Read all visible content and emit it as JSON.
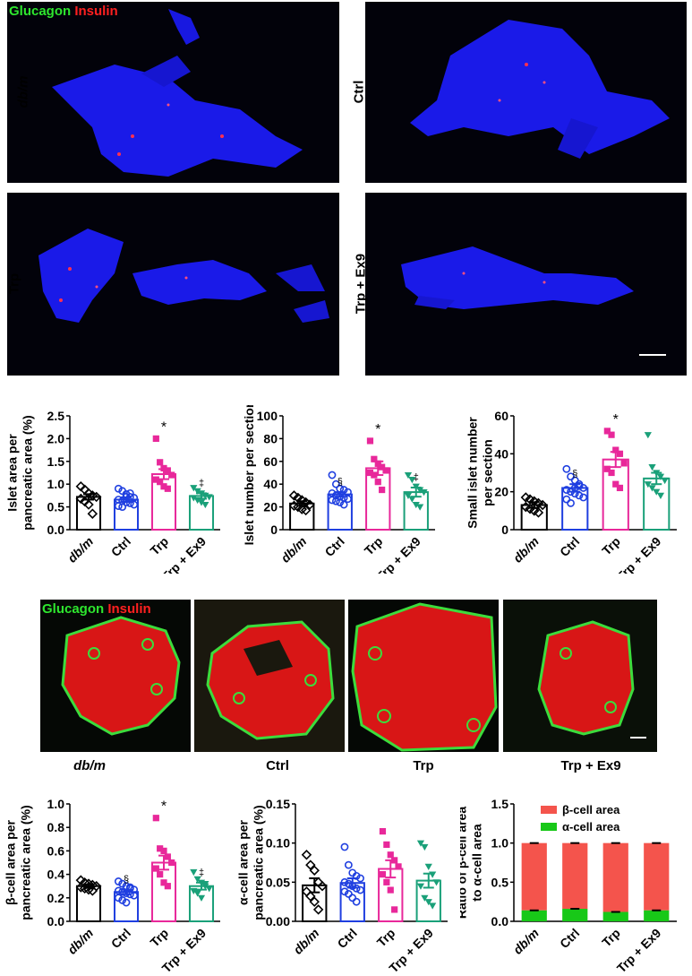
{
  "stain_legend": {
    "glucagon": "Glucagon",
    "insulin": "Insulin"
  },
  "section_panels": [
    {
      "label": "db/m"
    },
    {
      "label": "Ctrl"
    },
    {
      "label": "Trp"
    },
    {
      "label": "Trp + Ex9"
    }
  ],
  "islet_captions": [
    "db/m",
    "Ctrl",
    "Trp",
    "Trp + Ex9"
  ],
  "colors": {
    "db/m": "#000000",
    "Ctrl": "#1f3fe0",
    "Trp": "#e8289a",
    "Trp + Ex9": "#1aa079",
    "beta": "#f4544c",
    "alpha": "#18c818",
    "tissue_blue": "#1a1ae8",
    "insulin_red": "#e81818",
    "glucagon_green": "#3cdc3c"
  },
  "chart_data": [
    {
      "id": "islet-area",
      "type": "bar",
      "categories": [
        "db/m",
        "Ctrl",
        "Trp",
        "Trp + Ex9"
      ],
      "values": [
        0.72,
        0.66,
        1.22,
        0.74
      ],
      "errors": [
        0.06,
        0.05,
        0.11,
        0.06
      ],
      "points": [
        [
          0.95,
          0.88,
          0.8,
          0.75,
          0.72,
          0.68,
          0.62,
          0.55,
          0.35
        ],
        [
          0.9,
          0.85,
          0.78,
          0.72,
          0.7,
          0.66,
          0.63,
          0.6,
          0.58,
          0.55,
          0.52,
          0.5,
          0.72,
          0.8
        ],
        [
          2.0,
          1.48,
          1.35,
          1.3,
          1.2,
          1.1,
          1.05,
          0.95,
          0.9
        ],
        [
          0.92,
          0.85,
          0.8,
          0.75,
          0.72,
          0.7,
          0.65,
          0.6,
          0.55
        ]
      ],
      "markers": [
        "diamond-open",
        "circle-open",
        "square",
        "triangle-down"
      ],
      "ylabel": "Islet area per\npancreatic area (%)",
      "ylim": [
        0,
        2.5
      ],
      "yticks": [
        "0.0",
        "0.5",
        "1.0",
        "1.5",
        "2.0",
        "2.5"
      ],
      "annotations": [
        "",
        "",
        "*",
        "‡"
      ]
    },
    {
      "id": "islet-number",
      "type": "bar",
      "categories": [
        "db/m",
        "Ctrl",
        "Trp",
        "Trp + Ex9"
      ],
      "values": [
        23,
        31,
        54,
        33
      ],
      "errors": [
        2,
        2,
        6,
        4
      ],
      "points": [
        [
          30,
          28,
          26,
          24,
          22,
          21,
          20,
          18,
          17
        ],
        [
          48,
          40,
          36,
          35,
          33,
          32,
          30,
          29,
          28,
          27,
          26,
          25,
          24,
          22
        ],
        [
          78,
          62,
          58,
          55,
          52,
          50,
          48,
          42,
          35
        ],
        [
          48,
          44,
          38,
          35,
          33,
          30,
          27,
          22,
          20
        ]
      ],
      "markers": [
        "diamond-open",
        "circle-open",
        "square",
        "triangle-down"
      ],
      "ylabel": "Islet number per section",
      "ylim": [
        0,
        100
      ],
      "yticks": [
        "0",
        "20",
        "40",
        "60",
        "80",
        "100"
      ],
      "annotations": [
        "",
        "§",
        "*",
        "‡"
      ]
    },
    {
      "id": "small-islet-number",
      "type": "bar",
      "categories": [
        "db/m",
        "Ctrl",
        "Trp",
        "Trp + Ex9"
      ],
      "values": [
        13,
        22,
        37,
        27
      ],
      "errors": [
        1.5,
        2,
        4,
        3
      ],
      "points": [
        [
          17,
          16,
          15,
          14,
          13,
          12,
          11,
          10,
          9
        ],
        [
          32,
          28,
          26,
          24,
          22,
          21,
          20,
          19,
          18,
          17,
          16,
          14,
          22,
          23
        ],
        [
          52,
          50,
          42,
          40,
          35,
          32,
          30,
          24,
          22
        ],
        [
          50,
          33,
          30,
          28,
          26,
          24,
          22,
          20,
          18
        ]
      ],
      "markers": [
        "diamond-open",
        "circle-open",
        "square",
        "triangle-down"
      ],
      "ylabel": "Small islet number\nper section",
      "ylim": [
        0,
        60
      ],
      "yticks": [
        "0",
        "20",
        "40",
        "60"
      ],
      "annotations": [
        "",
        "§",
        "*",
        ""
      ]
    },
    {
      "id": "beta-cell-area",
      "type": "bar",
      "categories": [
        "db/m",
        "Ctrl",
        "Trp",
        "Trp + Ex9"
      ],
      "values": [
        0.3,
        0.25,
        0.5,
        0.3
      ],
      "errors": [
        0.015,
        0.02,
        0.06,
        0.03
      ],
      "points": [
        [
          0.35,
          0.33,
          0.32,
          0.31,
          0.3,
          0.29,
          0.28,
          0.27,
          0.26
        ],
        [
          0.34,
          0.32,
          0.3,
          0.28,
          0.27,
          0.26,
          0.25,
          0.24,
          0.23,
          0.22,
          0.2,
          0.18,
          0.16,
          0.29
        ],
        [
          0.88,
          0.62,
          0.6,
          0.55,
          0.5,
          0.45,
          0.4,
          0.33,
          0.3
        ],
        [
          0.42,
          0.36,
          0.33,
          0.3,
          0.28,
          0.26,
          0.24,
          0.2,
          0.32
        ]
      ],
      "markers": [
        "diamond-open",
        "circle-open",
        "square",
        "triangle-down"
      ],
      "ylabel": "β-cell area per\npancreatic area (%)",
      "ylim": [
        0,
        1.0
      ],
      "yticks": [
        "0.0",
        "0.2",
        "0.4",
        "0.6",
        "0.8",
        "1.0"
      ],
      "annotations": [
        "",
        "§",
        "*",
        "‡"
      ]
    },
    {
      "id": "alpha-cell-area",
      "type": "bar",
      "categories": [
        "db/m",
        "Ctrl",
        "Trp",
        "Trp + Ex9"
      ],
      "values": [
        0.046,
        0.049,
        0.067,
        0.052
      ],
      "errors": [
        0.009,
        0.006,
        0.011,
        0.009
      ],
      "points": [
        [
          0.085,
          0.072,
          0.065,
          0.05,
          0.045,
          0.038,
          0.032,
          0.025,
          0.015
        ],
        [
          0.095,
          0.072,
          0.062,
          0.058,
          0.055,
          0.05,
          0.048,
          0.045,
          0.042,
          0.04,
          0.038,
          0.035,
          0.03,
          0.025
        ],
        [
          0.115,
          0.098,
          0.085,
          0.078,
          0.07,
          0.06,
          0.05,
          0.04,
          0.015
        ],
        [
          0.1,
          0.095,
          0.07,
          0.06,
          0.05,
          0.045,
          0.03,
          0.025,
          0.02
        ]
      ],
      "markers": [
        "diamond-open",
        "circle-open",
        "square",
        "triangle-down"
      ],
      "ylabel": "α-cell area per\npancreatic area (%)",
      "ylim": [
        0,
        0.15
      ],
      "yticks": [
        "0.00",
        "0.05",
        "0.10",
        "0.15"
      ],
      "annotations": [
        "",
        "",
        "",
        ""
      ]
    },
    {
      "id": "ratio",
      "type": "stacked-bar",
      "categories": [
        "db/m",
        "Ctrl",
        "Trp",
        "Trp + Ex9"
      ],
      "series": [
        {
          "name": "α-cell area",
          "values": [
            0.14,
            0.16,
            0.12,
            0.14
          ]
        },
        {
          "name": "β-cell area",
          "values": [
            0.86,
            0.84,
            0.88,
            0.86
          ]
        }
      ],
      "ylabel": "Ratio of β-cell area\nto α-cell area",
      "ylim": [
        0,
        1.5
      ],
      "yticks": [
        "0.0",
        "0.5",
        "1.0",
        "1.5"
      ],
      "legend": "top"
    }
  ],
  "scale_bars": [
    "section",
    "islet"
  ]
}
